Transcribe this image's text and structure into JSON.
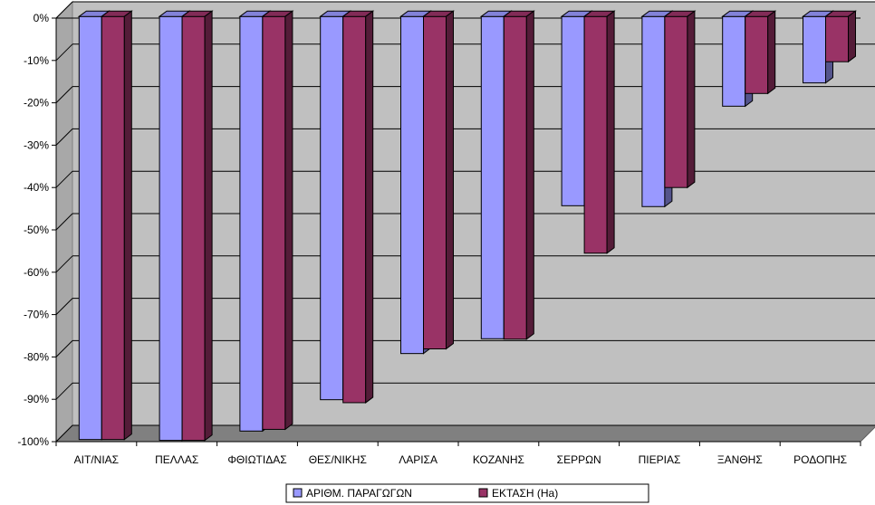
{
  "chart_data": {
    "type": "bar",
    "style": "3d-clustered-column",
    "categories": [
      "ΑΙΤ/ΝΙΑΣ",
      "ΠΕΛΛΑΣ",
      "ΦΘΙΩΤΙΔΑΣ",
      "ΘΕΣ/ΝΙΚΗΣ",
      "ΛΑΡΙΣΑ",
      "ΚΟΖΑΝΗΣ",
      "ΣΕΡΡΩΝ",
      "ΠΙΕΡΙΑΣ",
      "ΞΑΝΘΗΣ",
      "ΡΟΔΟΠΗΣ"
    ],
    "series": [
      {
        "name": "ΑΡΙΘΜ. ΠΑΡΑΓΩΓΩΝ",
        "values": [
          -99.5,
          -99.7,
          -97.5,
          -90.1,
          -79.2,
          -75.7,
          -44.3,
          -44.5,
          -20.8,
          -15.3
        ],
        "color": "#9999FF"
      },
      {
        "name": "ΕΚΤΑΣΗ (Ha)",
        "values": [
          -99.5,
          -99.7,
          -97.1,
          -90.8,
          -78.1,
          -75.8,
          -55.5,
          -40.0,
          -17.8,
          -10.3
        ],
        "color": "#993366"
      }
    ],
    "y_ticks": [
      "0%",
      "-10%",
      "-20%",
      "-30%",
      "-40%",
      "-50%",
      "-60%",
      "-70%",
      "-80%",
      "-90%",
      "-100%"
    ],
    "ylim": [
      -100,
      0
    ],
    "gridlines": true,
    "legend_position": "bottom",
    "colors": {
      "plot_background": "#C0C0C0",
      "floor": "#808080",
      "grid": "#000000"
    }
  }
}
